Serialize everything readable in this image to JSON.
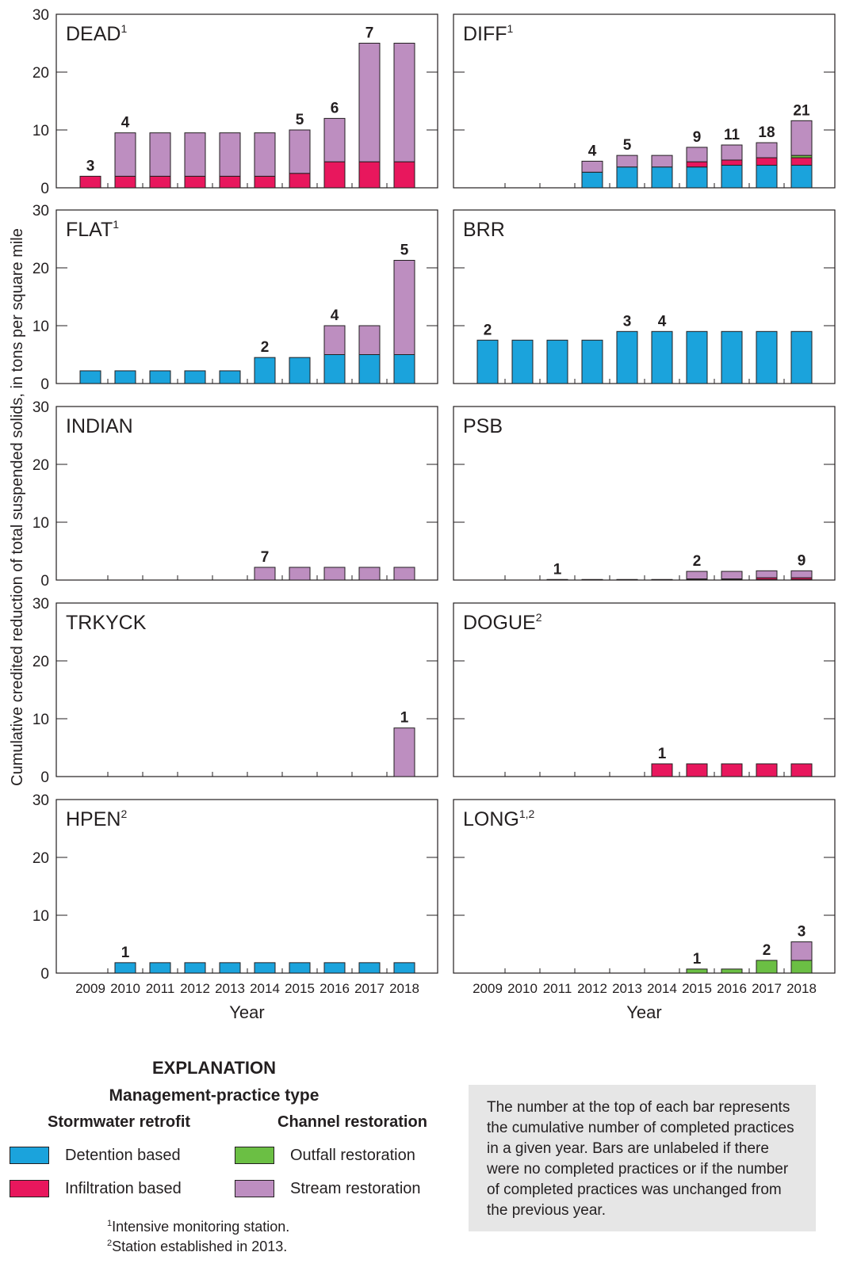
{
  "chart_data": {
    "type": "bar",
    "stacked": true,
    "ylabel": "Cumulative credited reduction of total suspended solids, in tons per square mile",
    "xlabel": "Year",
    "categories": [
      "2009",
      "2010",
      "2011",
      "2012",
      "2013",
      "2014",
      "2015",
      "2016",
      "2017",
      "2018"
    ],
    "ylim": [
      0,
      30
    ],
    "yticks": [
      "0",
      "10",
      "20",
      "30"
    ],
    "series_colors": {
      "detention": "#1ba3dc",
      "infiltration": "#e8175d",
      "outfall": "#6bbf44",
      "stream": "#bd8ec0"
    },
    "panels": [
      {
        "name": "DEAD",
        "sup": "1",
        "values": {
          "detention": [
            0,
            0,
            0,
            0,
            0,
            0,
            0,
            0,
            0,
            0
          ],
          "infiltration": [
            2,
            2,
            2,
            2,
            2,
            2,
            2.5,
            4.5,
            4.5,
            4.5
          ],
          "outfall": [
            0,
            0,
            0,
            0,
            0,
            0,
            0,
            0,
            0,
            0
          ],
          "stream": [
            0,
            7.5,
            7.5,
            7.5,
            7.5,
            7.5,
            7.5,
            7.5,
            20.5,
            20.5
          ]
        },
        "labels": [
          "3",
          "4",
          "",
          "",
          "",
          "",
          "5",
          "6",
          "7",
          ""
        ]
      },
      {
        "name": "DIFF",
        "sup": "1",
        "values": {
          "detention": [
            0,
            0,
            0,
            2.7,
            3.6,
            3.6,
            3.6,
            3.9,
            3.9,
            3.9
          ],
          "infiltration": [
            0,
            0,
            0,
            0,
            0,
            0,
            0.9,
            0.9,
            1.3,
            1.3
          ],
          "outfall": [
            0,
            0,
            0,
            0,
            0,
            0,
            0,
            0,
            0,
            0.4
          ],
          "stream": [
            0,
            0,
            0,
            1.9,
            2,
            2,
            2.5,
            2.6,
            2.6,
            6
          ]
        },
        "labels": [
          "",
          "",
          "",
          "4",
          "5",
          "",
          "9",
          "11",
          "18",
          "21"
        ]
      },
      {
        "name": "FLAT",
        "sup": "1",
        "values": {
          "detention": [
            2.2,
            2.2,
            2.2,
            2.2,
            2.2,
            4.5,
            4.5,
            5,
            5,
            5
          ],
          "infiltration": [
            0,
            0,
            0,
            0,
            0,
            0,
            0,
            0,
            0,
            0
          ],
          "outfall": [
            0,
            0,
            0,
            0,
            0,
            0,
            0,
            0,
            0,
            0
          ],
          "stream": [
            0,
            0,
            0,
            0,
            0,
            0,
            0,
            5,
            5,
            16.3
          ]
        },
        "labels": [
          "",
          "",
          "",
          "",
          "",
          "2",
          "",
          "4",
          "",
          "5"
        ]
      },
      {
        "name": "BRR",
        "sup": "",
        "values": {
          "detention": [
            7.5,
            7.5,
            7.5,
            7.5,
            9,
            9,
            9,
            9,
            9,
            9
          ],
          "infiltration": [
            0,
            0,
            0,
            0,
            0,
            0,
            0,
            0,
            0,
            0
          ],
          "outfall": [
            0,
            0,
            0,
            0,
            0,
            0,
            0,
            0,
            0,
            0
          ],
          "stream": [
            0,
            0,
            0,
            0,
            0,
            0,
            0,
            0,
            0,
            0
          ]
        },
        "labels": [
          "2",
          "",
          "",
          "",
          "3",
          "4",
          "",
          "",
          "",
          ""
        ]
      },
      {
        "name": "INDIAN",
        "sup": "",
        "values": {
          "detention": [
            0,
            0,
            0,
            0,
            0,
            0,
            0,
            0,
            0,
            0
          ],
          "infiltration": [
            0,
            0,
            0,
            0,
            0,
            0,
            0,
            0,
            0,
            0
          ],
          "outfall": [
            0,
            0,
            0,
            0,
            0,
            0,
            0,
            0,
            0,
            0
          ],
          "stream": [
            0,
            0,
            0,
            0,
            0,
            2.2,
            2.2,
            2.2,
            2.2,
            2.2
          ]
        },
        "labels": [
          "",
          "",
          "",
          "",
          "",
          "7",
          "",
          "",
          "",
          ""
        ]
      },
      {
        "name": "PSB",
        "sup": "",
        "values": {
          "detention": [
            0,
            0,
            0.1,
            0.1,
            0.1,
            0.1,
            0.1,
            0.1,
            0.1,
            0.1
          ],
          "infiltration": [
            0,
            0,
            0,
            0,
            0,
            0,
            0.1,
            0.1,
            0.3,
            0.3
          ],
          "outfall": [
            0,
            0,
            0,
            0,
            0,
            0,
            0,
            0,
            0,
            0
          ],
          "stream": [
            0,
            0,
            0,
            0,
            0,
            0,
            1.3,
            1.3,
            1.2,
            1.2
          ]
        },
        "labels": [
          "",
          "",
          "1",
          "",
          "",
          "",
          "2",
          "",
          "",
          "9"
        ]
      },
      {
        "name": "TRKYCK",
        "sup": "",
        "values": {
          "detention": [
            0,
            0,
            0,
            0,
            0,
            0,
            0,
            0,
            0,
            0
          ],
          "infiltration": [
            0,
            0,
            0,
            0,
            0,
            0,
            0,
            0,
            0,
            0
          ],
          "outfall": [
            0,
            0,
            0,
            0,
            0,
            0,
            0,
            0,
            0,
            0
          ],
          "stream": [
            0,
            0,
            0,
            0,
            0,
            0,
            0,
            0,
            0,
            8.4
          ]
        },
        "labels": [
          "",
          "",
          "",
          "",
          "",
          "",
          "",
          "",
          "",
          "1"
        ]
      },
      {
        "name": "DOGUE",
        "sup": "2",
        "values": {
          "detention": [
            0,
            0,
            0,
            0,
            0,
            0,
            0,
            0,
            0,
            0
          ],
          "infiltration": [
            0,
            0,
            0,
            0,
            0,
            2.2,
            2.2,
            2.2,
            2.2,
            2.2
          ],
          "outfall": [
            0,
            0,
            0,
            0,
            0,
            0,
            0,
            0,
            0,
            0
          ],
          "stream": [
            0,
            0,
            0,
            0,
            0,
            0,
            0,
            0,
            0,
            0
          ]
        },
        "labels": [
          "",
          "",
          "",
          "",
          "",
          "1",
          "",
          "",
          "",
          ""
        ]
      },
      {
        "name": "HPEN",
        "sup": "2",
        "values": {
          "detention": [
            0,
            1.8,
            1.8,
            1.8,
            1.8,
            1.8,
            1.8,
            1.8,
            1.8,
            1.8
          ],
          "infiltration": [
            0,
            0,
            0,
            0,
            0,
            0,
            0,
            0,
            0,
            0
          ],
          "outfall": [
            0,
            0,
            0,
            0,
            0,
            0,
            0,
            0,
            0,
            0
          ],
          "stream": [
            0,
            0,
            0,
            0,
            0,
            0,
            0,
            0,
            0,
            0
          ]
        },
        "labels": [
          "",
          "1",
          "",
          "",
          "",
          "",
          "",
          "",
          "",
          ""
        ]
      },
      {
        "name": "LONG",
        "sup": "1,2",
        "values": {
          "detention": [
            0,
            0,
            0,
            0,
            0,
            0,
            0,
            0,
            0,
            0
          ],
          "infiltration": [
            0,
            0,
            0,
            0,
            0,
            0,
            0,
            0,
            0,
            0
          ],
          "outfall": [
            0,
            0,
            0,
            0,
            0,
            0,
            0.7,
            0.7,
            2.2,
            2.2
          ],
          "stream": [
            0,
            0,
            0,
            0,
            0,
            0,
            0,
            0,
            0,
            3.2
          ]
        },
        "labels": [
          "",
          "",
          "",
          "",
          "",
          "",
          "1",
          "",
          "2",
          "3"
        ]
      }
    ]
  },
  "explanation": {
    "title": "EXPLANATION",
    "subtitle": "Management-practice type",
    "groups": {
      "stormwater": "Stormwater retrofit",
      "channel": "Channel restoration"
    },
    "legend": {
      "detention": "Detention based",
      "infiltration": "Infiltration based",
      "outfall": "Outfall restoration",
      "stream": "Stream restoration"
    },
    "footnotes": {
      "fn1_mark": "1",
      "fn1": "Intensive monitoring station.",
      "fn2_mark": "2",
      "fn2": "Station established in 2013."
    },
    "note": "The number at the top of each bar represents the cumulative number of completed practices in a given year. Bars are unlabeled if there were no completed practices or if the number of completed practices was unchanged from the previous year."
  }
}
